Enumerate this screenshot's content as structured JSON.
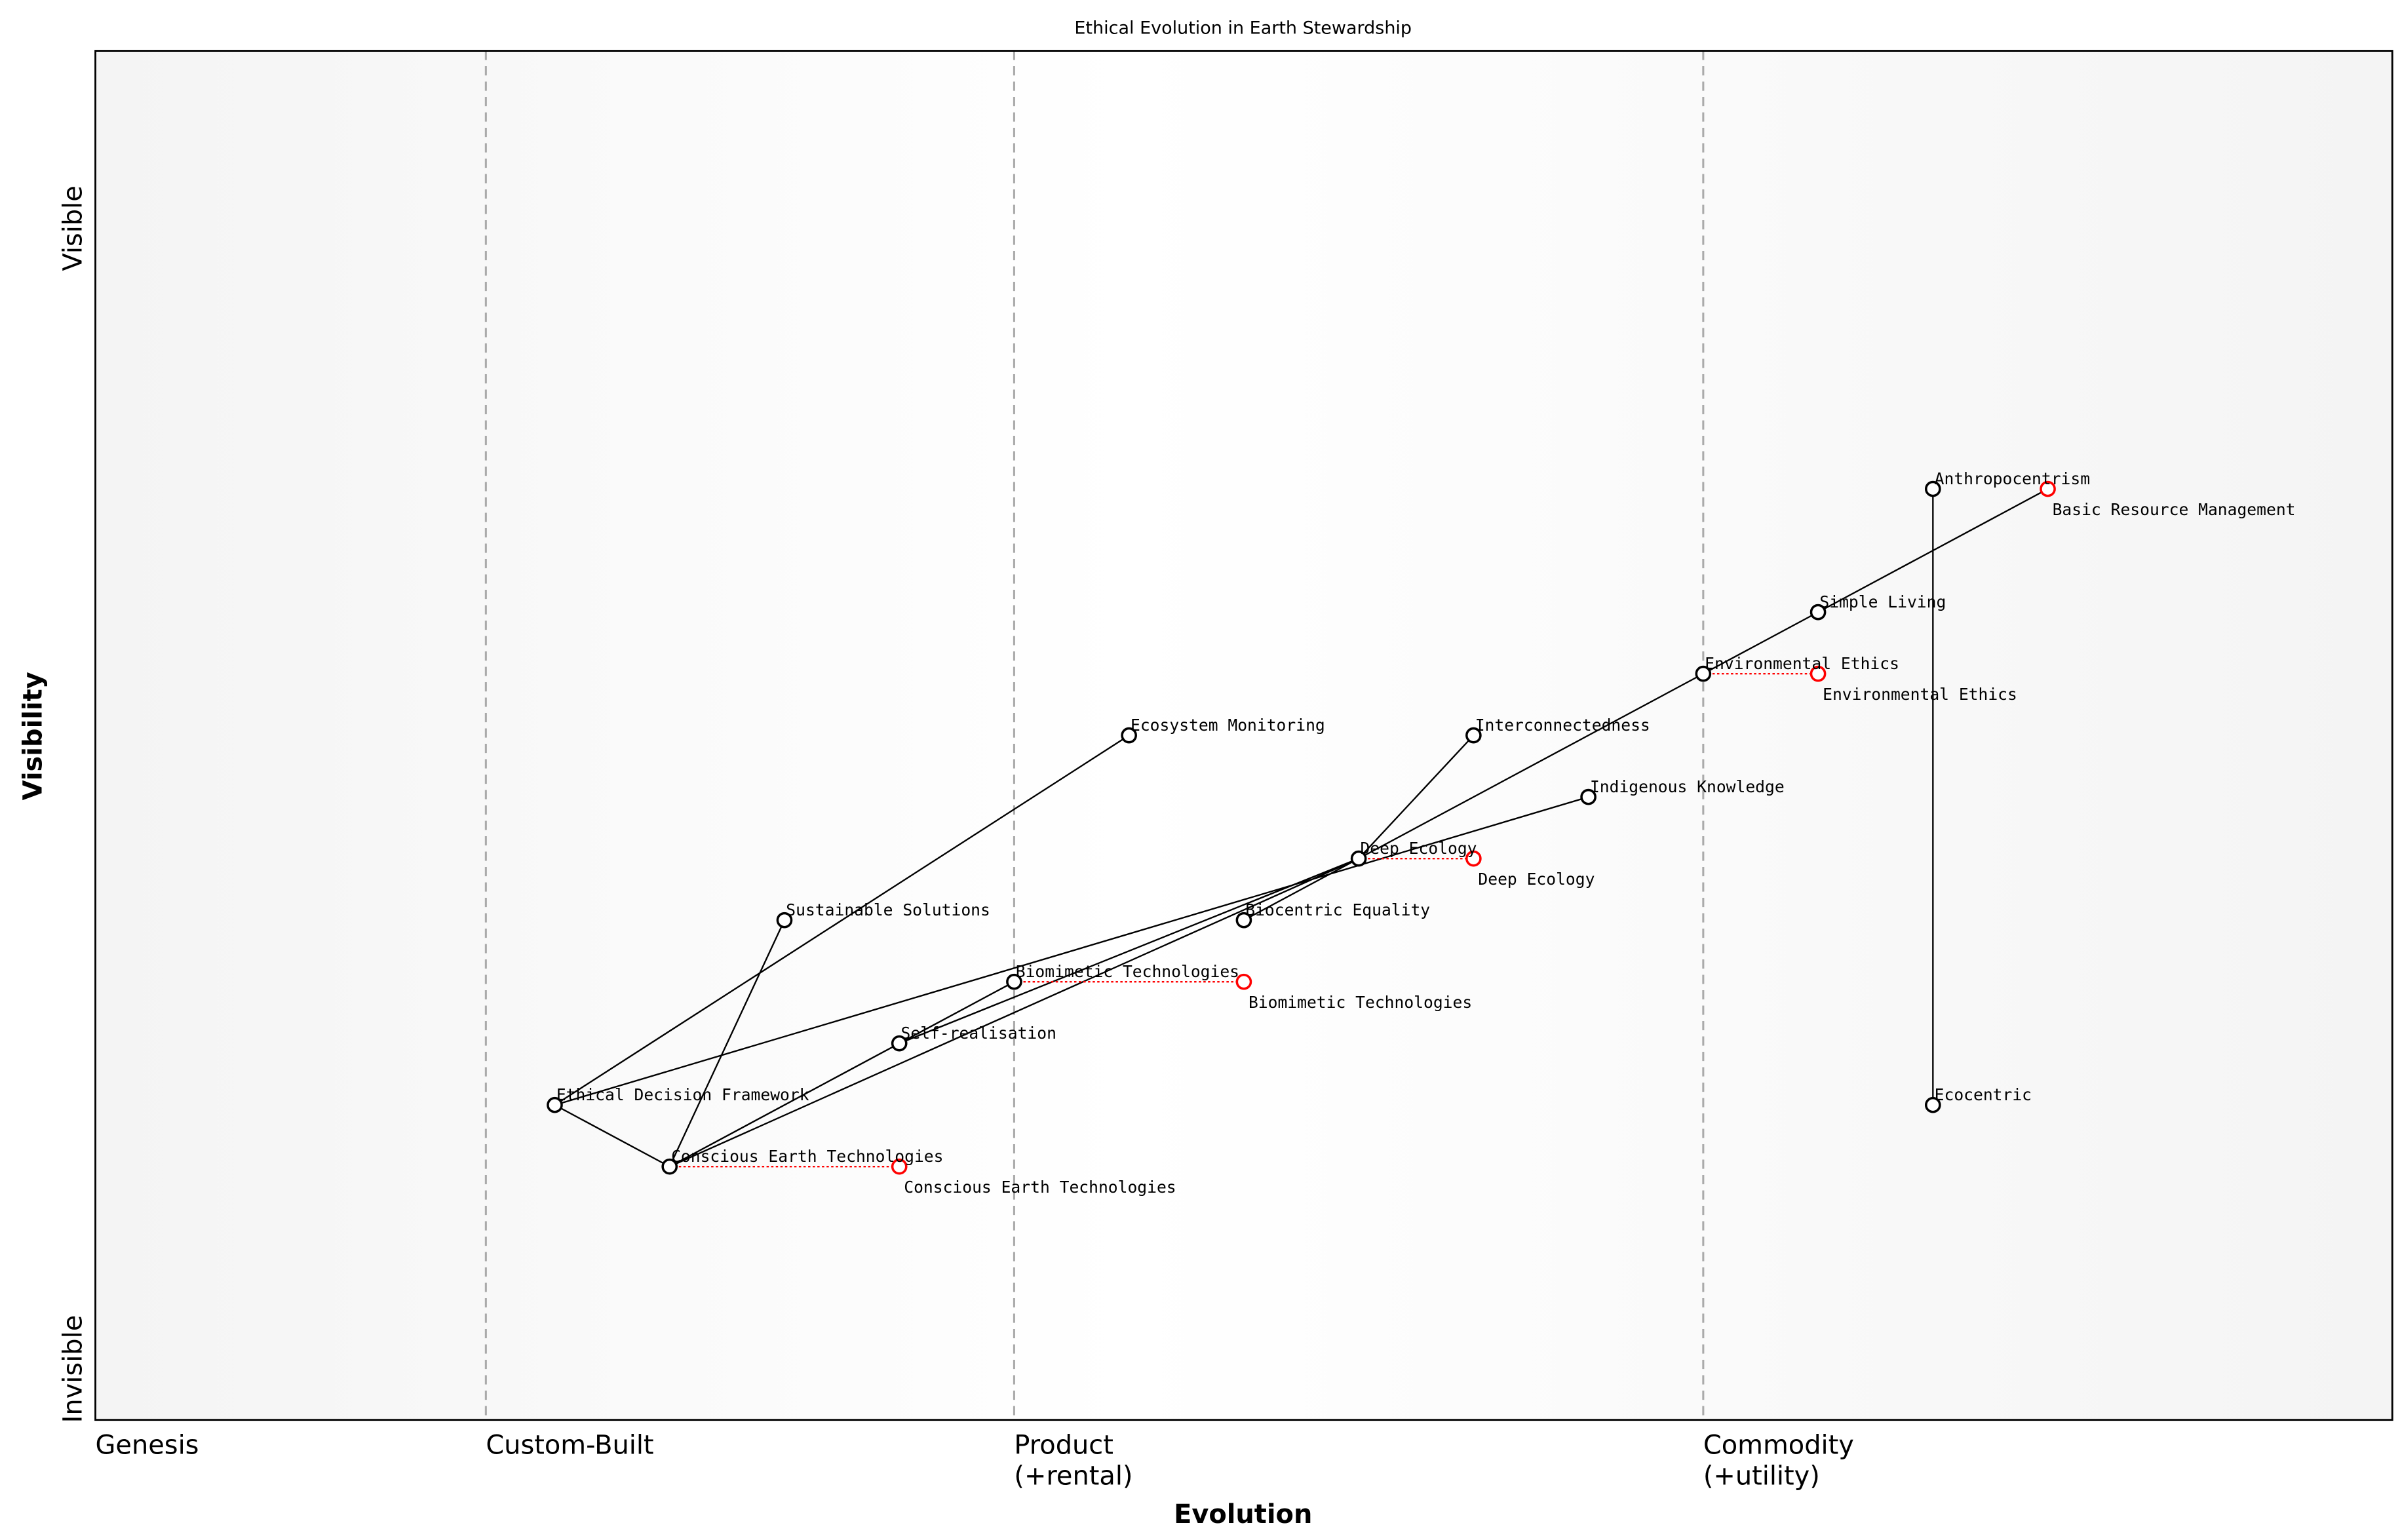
{
  "chart_data": {
    "type": "wardley-map",
    "title": "Ethical Evolution in Earth Stewardship",
    "xlabel": "Evolution",
    "ylabel": "Visibility",
    "xlim": [
      0,
      1
    ],
    "ylim": [
      0,
      1
    ],
    "y_ticks": [
      {
        "label": "Visible",
        "value": 0.9
      },
      {
        "label": "Invisible",
        "value": 0.0
      }
    ],
    "stages": [
      {
        "label": "Genesis",
        "value": 0.0
      },
      {
        "label": "Custom-Built",
        "value": 0.17
      },
      {
        "label": "Product\n(+rental)",
        "value": 0.4
      },
      {
        "label": "Commodity\n(+utility)",
        "value": 0.7
      }
    ],
    "components": [
      {
        "name": "Anthropocentrism",
        "x": 0.8,
        "y": 0.68
      },
      {
        "name": "Simple Living",
        "x": 0.75,
        "y": 0.59
      },
      {
        "name": "Environmental Ethics",
        "x": 0.7,
        "y": 0.545
      },
      {
        "name": "Interconnectedness",
        "x": 0.6,
        "y": 0.5
      },
      {
        "name": "Ecosystem Monitoring",
        "x": 0.45,
        "y": 0.5
      },
      {
        "name": "Indigenous Knowledge",
        "x": 0.65,
        "y": 0.455
      },
      {
        "name": "Deep Ecology",
        "x": 0.55,
        "y": 0.41
      },
      {
        "name": "Biocentric Equality",
        "x": 0.5,
        "y": 0.365
      },
      {
        "name": "Sustainable Solutions",
        "x": 0.3,
        "y": 0.365
      },
      {
        "name": "Biomimetic Technologies",
        "x": 0.4,
        "y": 0.32
      },
      {
        "name": "Self-realisation",
        "x": 0.35,
        "y": 0.275
      },
      {
        "name": "Ethical Decision Framework",
        "x": 0.2,
        "y": 0.23
      },
      {
        "name": "Conscious Earth Technologies",
        "x": 0.25,
        "y": 0.185
      },
      {
        "name": "Ecocentric",
        "x": 0.8,
        "y": 0.23
      }
    ],
    "evolved": [
      {
        "name": "Basic Resource Management",
        "x": 0.85,
        "y": 0.68,
        "from": null
      },
      {
        "name": "Environmental Ethics",
        "x": 0.75,
        "y": 0.545,
        "from": "Environmental Ethics"
      },
      {
        "name": "Deep Ecology",
        "x": 0.6,
        "y": 0.41,
        "from": "Deep Ecology"
      },
      {
        "name": "Biomimetic Technologies",
        "x": 0.5,
        "y": 0.32,
        "from": "Biomimetic Technologies"
      },
      {
        "name": "Conscious Earth Technologies",
        "x": 0.35,
        "y": 0.185,
        "from": "Conscious Earth Technologies"
      }
    ],
    "links": [
      [
        "Anthropocentrism",
        "Ecocentric"
      ],
      [
        "Basic Resource Management",
        "Simple Living"
      ],
      [
        "Simple Living",
        "Environmental Ethics"
      ],
      [
        "Environmental Ethics",
        "Deep Ecology"
      ],
      [
        "Deep Ecology",
        "Interconnectedness"
      ],
      [
        "Deep Ecology",
        "Biocentric Equality"
      ],
      [
        "Self-realisation",
        "Deep Ecology"
      ],
      [
        "Conscious Earth Technologies",
        "Deep Ecology"
      ],
      [
        "Ethical Decision Framework",
        "Indigenous Knowledge"
      ],
      [
        "Ethical Decision Framework",
        "Ecosystem Monitoring"
      ],
      [
        "Ethical Decision Framework",
        "Conscious Earth Technologies"
      ],
      [
        "Conscious Earth Technologies",
        "Sustainable Solutions"
      ],
      [
        "Conscious Earth Technologies",
        "Self-realisation"
      ],
      [
        "Self-realisation",
        "Biomimetic Technologies"
      ]
    ],
    "colors": {
      "node": "#000000",
      "evolved": "#ff0000",
      "stage_line": "#aaaaaa"
    }
  }
}
